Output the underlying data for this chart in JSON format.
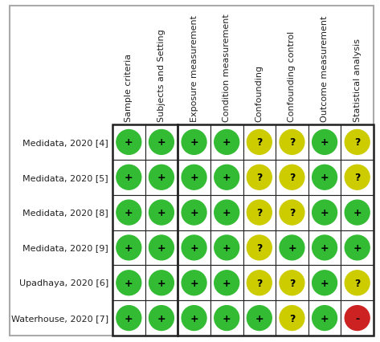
{
  "studies": [
    "Medidata, 2020 [4]",
    "Medidata, 2020 [5]",
    "Medidata, 2020 [8]",
    "Medidata, 2020 [9]",
    "Upadhaya, 2020 [6]",
    "Waterhouse, 2020 [7]"
  ],
  "columns": [
    "Sample criteria",
    "Subjects and Setting",
    "Exposure measurement",
    "Condition measurement",
    "Confounding",
    "Confounding control",
    "Outcome measurement",
    "Statistical analysis"
  ],
  "symbols": [
    [
      "+",
      "+",
      "+",
      "+",
      "?",
      "?",
      "+",
      "?"
    ],
    [
      "+",
      "+",
      "+",
      "+",
      "?",
      "?",
      "+",
      "?"
    ],
    [
      "+",
      "+",
      "+",
      "+",
      "?",
      "?",
      "+",
      "+"
    ],
    [
      "+",
      "+",
      "+",
      "+",
      "?",
      "+",
      "+",
      "+"
    ],
    [
      "+",
      "+",
      "+",
      "+",
      "?",
      "?",
      "+",
      "?"
    ],
    [
      "+",
      "+",
      "+",
      "+",
      "+",
      "?",
      "+",
      "-"
    ]
  ],
  "colors": [
    [
      "#33bb33",
      "#33bb33",
      "#33bb33",
      "#33bb33",
      "#cccc00",
      "#cccc00",
      "#33bb33",
      "#cccc00"
    ],
    [
      "#33bb33",
      "#33bb33",
      "#33bb33",
      "#33bb33",
      "#cccc00",
      "#cccc00",
      "#33bb33",
      "#cccc00"
    ],
    [
      "#33bb33",
      "#33bb33",
      "#33bb33",
      "#33bb33",
      "#cccc00",
      "#cccc00",
      "#33bb33",
      "#33bb33"
    ],
    [
      "#33bb33",
      "#33bb33",
      "#33bb33",
      "#33bb33",
      "#cccc00",
      "#33bb33",
      "#33bb33",
      "#33bb33"
    ],
    [
      "#33bb33",
      "#33bb33",
      "#33bb33",
      "#33bb33",
      "#cccc00",
      "#cccc00",
      "#33bb33",
      "#cccc00"
    ],
    [
      "#33bb33",
      "#33bb33",
      "#33bb33",
      "#33bb33",
      "#33bb33",
      "#cccc00",
      "#33bb33",
      "#cc2222"
    ]
  ],
  "bg_color": "#ffffff",
  "border_color": "#222222",
  "text_color": "#222222",
  "col_header_fontsize": 8,
  "row_label_fontsize": 8,
  "symbol_fontsize": 9,
  "thick_border_after_col": 1,
  "fig_width": 4.73,
  "fig_height": 4.27,
  "dpi": 100
}
